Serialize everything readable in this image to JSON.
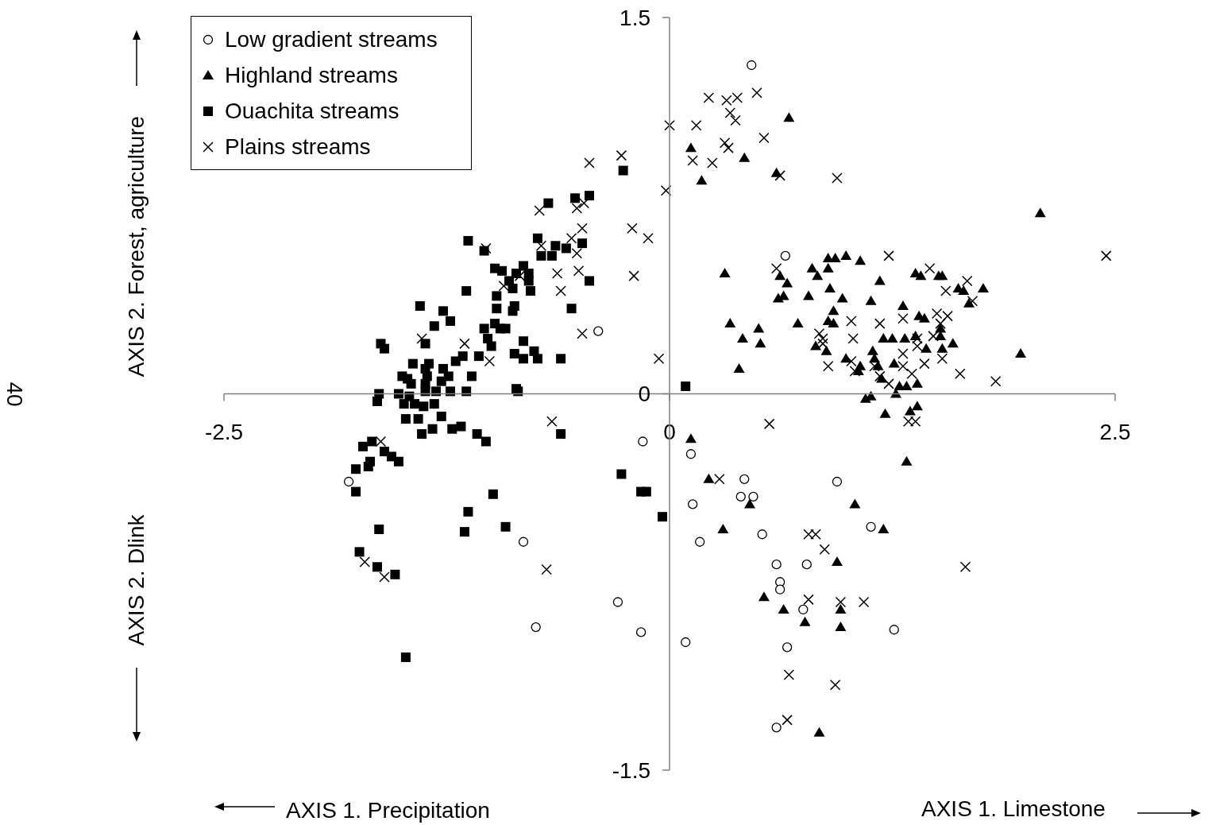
{
  "chart_data": {
    "type": "scatter",
    "ylabel": "AXIS 2. Forest, agriculture",
    "annotations": [
      "AXIS 1. Precipitation",
      "AXIS 1. Limestone",
      "AXIS 2. Dlink",
      "40"
    ],
    "xlim": [
      -2.5,
      2.5
    ],
    "ylim": [
      -1.5,
      1.5
    ],
    "xticks": [
      -2.5,
      0,
      2.5
    ],
    "yticks": [
      -1.5,
      0,
      1.5
    ],
    "legend": "top left",
    "series": [
      {
        "name": "Low gradient streams",
        "color": "#000000",
        "marker": "circle",
        "x": [
          0.46,
          0.65,
          -0.4,
          -1.8,
          -0.15,
          0.12,
          0.13,
          0.17,
          0.42,
          0.4,
          0.47,
          0.52,
          0.6,
          0.62,
          0.62,
          0.77,
          0.75,
          0.66,
          0.6,
          0.94,
          1.13,
          1.26,
          -0.16,
          0.09,
          -0.29,
          -0.75,
          -0.82
        ],
        "values": [
          1.31,
          0.55,
          0.25,
          -0.35,
          -0.19,
          -0.24,
          -0.44,
          -0.59,
          -0.34,
          -0.41,
          -0.41,
          -0.56,
          -0.68,
          -0.75,
          -0.78,
          -0.68,
          -0.86,
          -1.01,
          -1.33,
          -0.35,
          -0.53,
          -0.94,
          -0.95,
          -0.99,
          -0.83,
          -0.93,
          -0.59
        ]
      },
      {
        "name": "Highland streams",
        "color": "#000000",
        "marker": "triangle",
        "x": [
          0.67,
          0.12,
          0.42,
          0.18,
          0.6,
          0.31,
          0.62,
          0.66,
          0.61,
          0.64,
          0.8,
          0.83,
          0.89,
          0.93,
          0.99,
          1.07,
          0.89,
          0.9,
          0.78,
          0.97,
          1.18,
          1.13,
          0.34,
          0.5,
          0.41,
          0.51,
          0.39,
          0.72,
          0.92,
          0.89,
          0.92,
          0.82,
          0.88,
          0.99,
          1.07,
          1.06,
          1.14,
          1.15,
          1.17,
          1.19,
          1.2,
          1.25,
          1.26,
          1.32,
          1.29,
          1.33,
          1.27,
          1.39,
          1.38,
          1.44,
          1.52,
          1.52,
          1.53,
          1.59,
          1.31,
          1.4,
          1.43,
          1.38,
          1.41,
          1.51,
          1.53,
          1.62,
          1.65,
          1.68,
          1.76,
          1.97,
          1.1,
          1.13,
          1.21,
          1.35,
          1.39,
          2.08,
          0.12,
          0.22,
          0.45,
          0.3,
          1.04,
          1.33,
          1.2,
          0.94,
          0.53,
          0.64,
          0.76,
          0.96,
          0.96,
          0.84
        ],
        "values": [
          1.1,
          0.98,
          0.94,
          0.85,
          0.88,
          0.48,
          0.47,
          0.44,
          0.38,
          0.39,
          0.5,
          0.47,
          0.54,
          0.54,
          0.55,
          0.53,
          0.5,
          0.42,
          0.39,
          0.38,
          0.45,
          0.37,
          0.28,
          0.26,
          0.22,
          0.2,
          0.1,
          0.28,
          0.33,
          0.29,
          0.28,
          0.19,
          0.17,
          0.14,
          0.11,
          0.09,
          0.17,
          0.14,
          0.11,
          0.06,
          0.22,
          0.22,
          0.12,
          0.22,
          0.03,
          0.03,
          0.0,
          0.04,
          0.23,
          0.18,
          0.23,
          0.26,
          0.18,
          0.2,
          0.35,
          0.31,
          0.3,
          0.48,
          0.47,
          0.47,
          0.47,
          0.42,
          0.41,
          0.36,
          0.42,
          0.16,
          -0.02,
          -0.01,
          -0.08,
          -0.07,
          -0.05,
          0.72,
          -0.18,
          -0.34,
          -0.44,
          -0.54,
          -0.44,
          -0.27,
          -0.54,
          -0.67,
          -0.81,
          -0.86,
          -0.91,
          -0.86,
          -0.93,
          -1.35
        ]
      },
      {
        "name": "Ouachita streams",
        "color": "#000000",
        "marker": "square",
        "x": [
          -0.26,
          -0.68,
          -0.53,
          -0.45,
          -1.13,
          -1.04,
          -0.74,
          -0.64,
          -0.58,
          -0.49,
          -0.72,
          -0.66,
          -0.98,
          -0.94,
          -0.82,
          -0.86,
          -0.79,
          -0.79,
          -0.9,
          -0.88,
          -0.78,
          -0.45,
          -1.14,
          -0.97,
          -0.97,
          -0.87,
          -0.88,
          -0.55,
          -1.4,
          -1.27,
          -1.23,
          -1.32,
          -0.98,
          -1.04,
          -0.95,
          -0.92,
          -1.02,
          -1.0,
          -0.82,
          -0.87,
          -0.76,
          -0.82,
          -0.74,
          -0.61,
          -1.62,
          -1.6,
          -1.37,
          -1.16,
          -1.2,
          -1.07,
          -1.44,
          -1.35,
          -1.37,
          -1.27,
          -1.5,
          -1.47,
          -1.36,
          -1.24,
          -1.11,
          -1.37,
          -1.45,
          -1.28,
          -1.37,
          -1.31,
          -1.23,
          -1.14,
          -0.86,
          -0.85,
          -1.63,
          -1.64,
          -1.52,
          -1.46,
          -1.49,
          -1.43,
          -1.38,
          -1.32,
          -1.48,
          -1.41,
          -1.28,
          -1.22,
          -1.17,
          -1.39,
          -1.33,
          -1.08,
          -1.03,
          -0.61,
          0.09,
          -1.72,
          -1.67,
          -1.6,
          -1.56,
          -1.52,
          -1.68,
          -1.69,
          -1.76,
          -1.76,
          -1.63,
          -1.74,
          -1.64,
          -1.54,
          -1.48,
          -0.99,
          -1.13,
          -1.15,
          -0.92,
          -0.27,
          -0.16,
          -0.13,
          -0.04
        ],
        "values": [
          0.89,
          0.76,
          0.78,
          0.79,
          0.61,
          0.57,
          0.62,
          0.59,
          0.58,
          0.6,
          0.55,
          0.55,
          0.5,
          0.49,
          0.51,
          0.48,
          0.48,
          0.45,
          0.45,
          0.42,
          0.41,
          0.45,
          0.41,
          0.39,
          0.34,
          0.35,
          0.33,
          0.34,
          0.35,
          0.33,
          0.29,
          0.27,
          0.28,
          0.26,
          0.26,
          0.26,
          0.22,
          0.19,
          0.21,
          0.16,
          0.17,
          0.14,
          0.14,
          0.14,
          0.2,
          0.18,
          0.2,
          0.15,
          0.13,
          0.15,
          0.12,
          0.12,
          0.1,
          0.1,
          0.07,
          0.06,
          0.07,
          0.07,
          0.07,
          0.04,
          0.04,
          0.05,
          0.01,
          0.01,
          0.01,
          0.01,
          0.02,
          0.01,
          0.0,
          -0.03,
          0.0,
          -0.01,
          -0.04,
          -0.04,
          -0.05,
          -0.04,
          -0.1,
          -0.1,
          -0.09,
          -0.14,
          -0.13,
          -0.16,
          -0.14,
          -0.16,
          -0.19,
          -0.16,
          0.03,
          -0.21,
          -0.19,
          -0.23,
          -0.25,
          -0.27,
          -0.27,
          -0.29,
          -0.3,
          -0.39,
          -0.54,
          -0.63,
          -0.69,
          -0.72,
          -1.05,
          -0.4,
          -0.47,
          -0.55,
          -0.53,
          -0.32,
          -0.39,
          -0.39,
          -0.49
        ]
      },
      {
        "name": "Plains streams",
        "color": "#000000",
        "marker": "cross",
        "x": [
          -0.45,
          -0.27,
          -0.73,
          -0.52,
          -0.48,
          -0.49,
          -0.55,
          -0.72,
          -0.52,
          -0.63,
          -0.51,
          -0.61,
          -0.49,
          -1.03,
          -0.84,
          -0.93,
          -1.39,
          -1.15,
          -1.01,
          -0.66,
          -1.62,
          -1.71,
          -1.6,
          -0.69,
          0.49,
          0.22,
          0.32,
          0.38,
          0.34,
          0.37,
          0.0,
          0.15,
          0.53,
          0.31,
          0.33,
          0.13,
          0.24,
          0.62,
          0.94,
          -0.02,
          -0.21,
          -0.12,
          -0.2,
          -0.06,
          0.56,
          1.23,
          1.46,
          0.6,
          1.67,
          1.55,
          1.7,
          1.02,
          1.18,
          1.31,
          1.5,
          1.56,
          1.52,
          0.84,
          0.86,
          1.03,
          0.86,
          1.31,
          1.39,
          1.39,
          1.48,
          0.89,
          1.02,
          1.04,
          1.15,
          1.31,
          1.36,
          1.43,
          1.53,
          1.63,
          1.83,
          1.18,
          1.23,
          1.34,
          1.38,
          2.45,
          1.66,
          0.28,
          0.78,
          0.82,
          0.87,
          0.78,
          0.96,
          1.09,
          0.67,
          0.93,
          0.66
        ],
        "values": [
          0.92,
          0.95,
          0.73,
          0.74,
          0.76,
          0.66,
          0.62,
          0.59,
          0.56,
          0.48,
          0.49,
          0.41,
          0.24,
          0.58,
          0.47,
          0.43,
          0.22,
          0.2,
          0.13,
          -0.11,
          -0.19,
          -0.67,
          -0.73,
          -0.7,
          1.2,
          1.18,
          1.17,
          1.18,
          1.12,
          1.09,
          1.07,
          1.07,
          1.02,
          1.0,
          0.98,
          0.93,
          0.92,
          0.87,
          0.86,
          0.81,
          0.66,
          0.62,
          0.47,
          0.14,
          -0.12,
          0.55,
          0.5,
          0.5,
          0.45,
          0.41,
          0.37,
          0.29,
          0.28,
          0.3,
          0.32,
          0.31,
          0.28,
          0.24,
          0.22,
          0.22,
          0.2,
          0.16,
          0.22,
          0.19,
          0.23,
          0.11,
          0.13,
          0.09,
          0.11,
          0.11,
          0.08,
          0.12,
          0.14,
          0.08,
          0.05,
          0.07,
          0.04,
          -0.11,
          -0.11,
          0.55,
          -0.69,
          -0.34,
          -0.56,
          -0.56,
          -0.62,
          -0.82,
          -0.83,
          -0.83,
          -1.12,
          -1.16,
          -1.3
        ]
      }
    ]
  }
}
